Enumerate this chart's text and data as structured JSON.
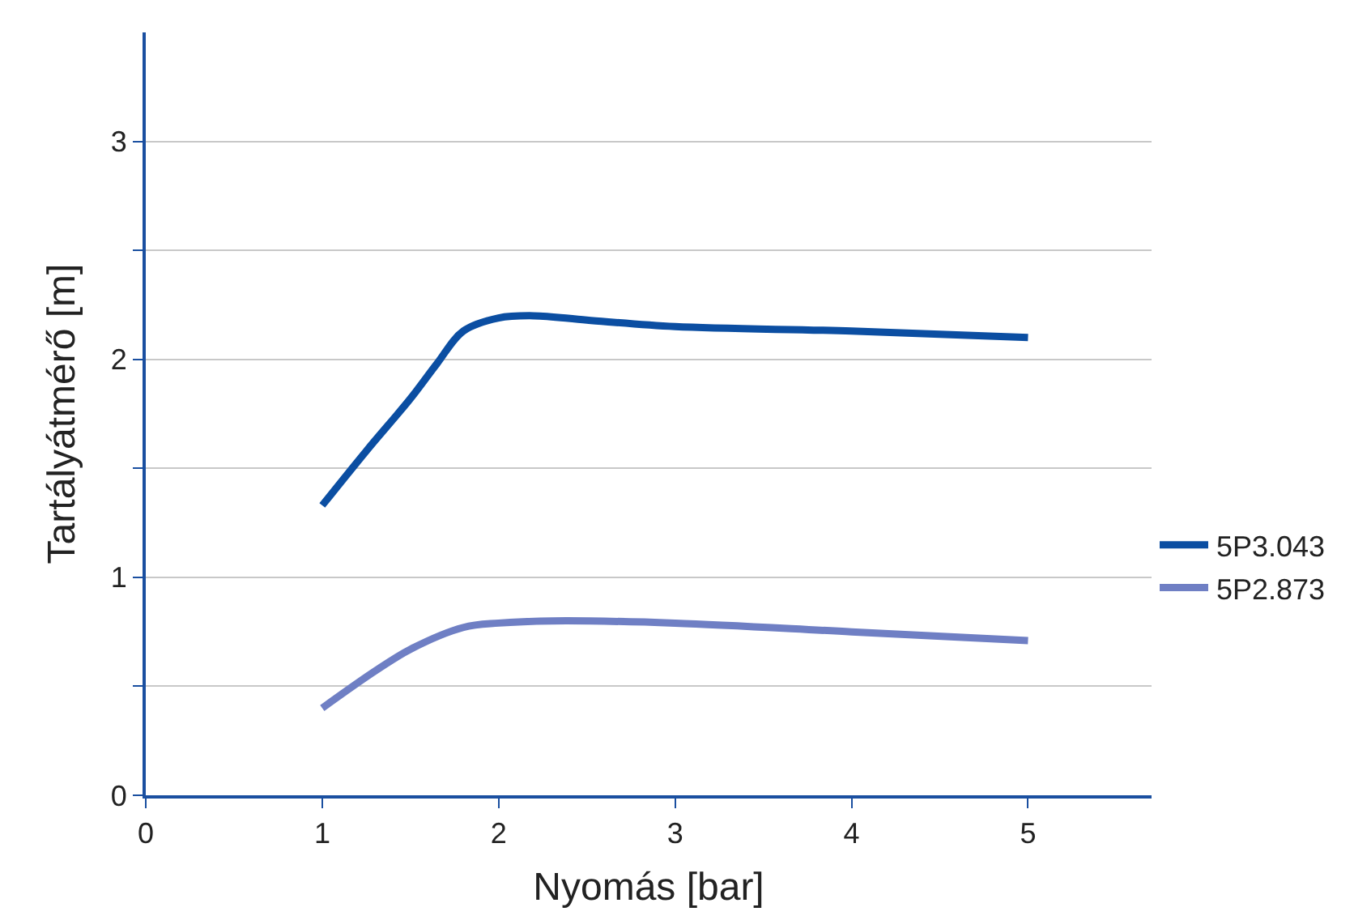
{
  "chart_data": {
    "type": "line",
    "xlabel": "Nyomás [bar]",
    "ylabel": "Tartályátmérő [m]",
    "xlim": [
      0,
      5.7
    ],
    "xticks": [
      0,
      1,
      2,
      3,
      4,
      5
    ],
    "ylim": [
      0,
      3.5
    ],
    "yticks": [
      0,
      {
        "value": 0.5,
        "label": null
      },
      1,
      {
        "value": 1.5,
        "label": null
      },
      2,
      {
        "value": 2.5,
        "label": null
      },
      3
    ],
    "grid": "y",
    "legend": "right",
    "marker": "none",
    "line_style": "solid",
    "series": [
      {
        "name": "5P3.043",
        "color": "#0b4ea2",
        "x": [
          1,
          1.25,
          1.5,
          1.65,
          1.8,
          2,
          2.2,
          2.5,
          3,
          4,
          5
        ],
        "values": [
          1.33,
          1.58,
          1.82,
          1.98,
          2.13,
          2.19,
          2.2,
          2.18,
          2.15,
          2.13,
          2.1
        ]
      },
      {
        "name": "5P2.873",
        "color": "#6f7fc4",
        "x": [
          1,
          1.3,
          1.5,
          1.8,
          2,
          2.3,
          3,
          4,
          5
        ],
        "values": [
          0.4,
          0.57,
          0.67,
          0.77,
          0.79,
          0.8,
          0.79,
          0.75,
          0.71
        ]
      }
    ]
  }
}
